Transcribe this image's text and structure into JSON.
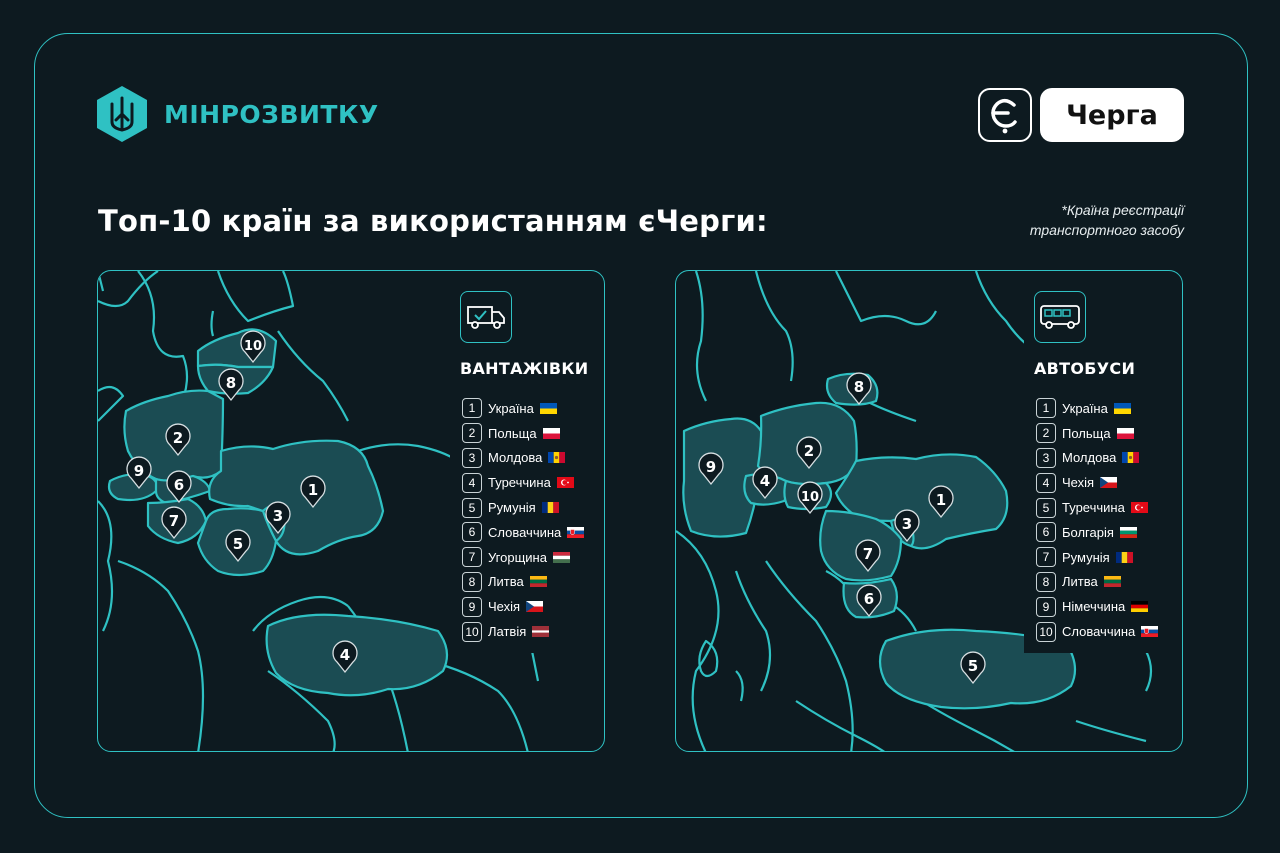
{
  "header": {
    "ministry_name": "МІНРОЗВИТКУ",
    "brand_name": "Черга",
    "title": "Топ-10 країн за використанням єЧерги:",
    "footnote_line1": "*Країна реєстрації",
    "footnote_line2": "транспортного засобу"
  },
  "colors": {
    "accent": "#2fc1c3",
    "background": "#0d1a20",
    "highlight_fill": "#1b4c53"
  },
  "trucks": {
    "title": "ВАНТАЖІВКИ",
    "icon": "truck-icon",
    "items": [
      {
        "rank": "1",
        "country": "Україна",
        "flag": "ua"
      },
      {
        "rank": "2",
        "country": "Польща",
        "flag": "pl"
      },
      {
        "rank": "3",
        "country": "Молдова",
        "flag": "md"
      },
      {
        "rank": "4",
        "country": "Туреччина",
        "flag": "tr"
      },
      {
        "rank": "5",
        "country": "Румунія",
        "flag": "ro"
      },
      {
        "rank": "6",
        "country": "Словаччина",
        "flag": "sk"
      },
      {
        "rank": "7",
        "country": "Угорщина",
        "flag": "hu"
      },
      {
        "rank": "8",
        "country": "Литва",
        "flag": "lt"
      },
      {
        "rank": "9",
        "country": "Чехія",
        "flag": "cz"
      },
      {
        "rank": "10",
        "country": "Латвія",
        "flag": "lv"
      }
    ]
  },
  "buses": {
    "title": "АВТОБУСИ",
    "icon": "bus-icon",
    "items": [
      {
        "rank": "1",
        "country": "Україна",
        "flag": "ua"
      },
      {
        "rank": "2",
        "country": "Польща",
        "flag": "pl"
      },
      {
        "rank": "3",
        "country": "Молдова",
        "flag": "md"
      },
      {
        "rank": "4",
        "country": "Чехія",
        "flag": "cz"
      },
      {
        "rank": "5",
        "country": "Туреччина",
        "flag": "tr"
      },
      {
        "rank": "6",
        "country": "Болгарія",
        "flag": "bg"
      },
      {
        "rank": "7",
        "country": "Румунія",
        "flag": "ro"
      },
      {
        "rank": "8",
        "country": "Литва",
        "flag": "lt"
      },
      {
        "rank": "9",
        "country": "Німеччина",
        "flag": "de"
      },
      {
        "rank": "10",
        "country": "Словаччина",
        "flag": "sk"
      }
    ]
  }
}
